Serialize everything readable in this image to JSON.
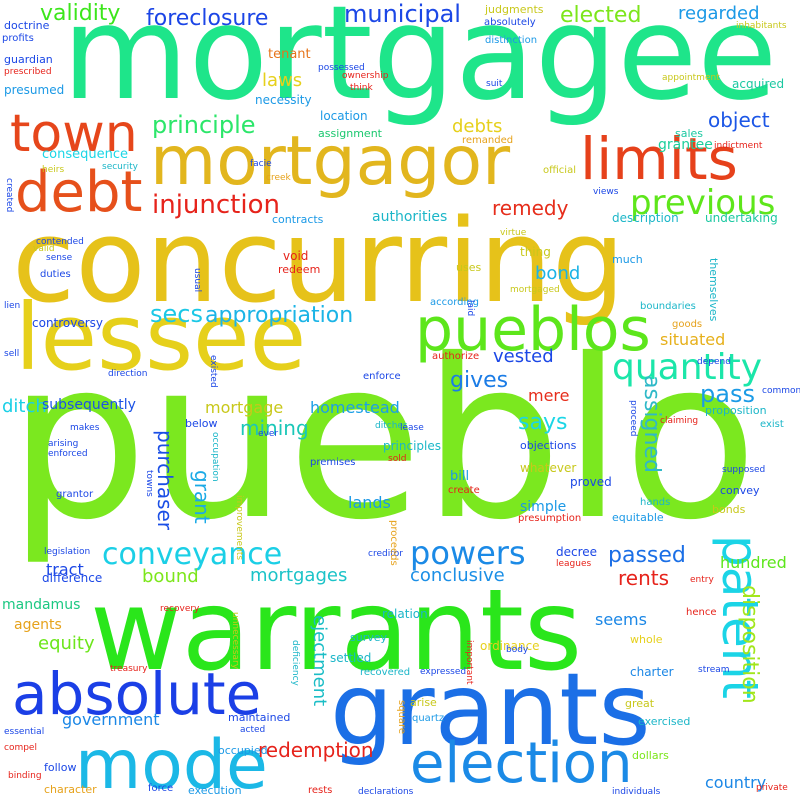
{
  "words": [
    {
      "text": "pueblo",
      "color": "#7be81f"
    },
    {
      "text": "mortgagee",
      "color": "#1ee58a"
    },
    {
      "text": "concurring",
      "color": "#e6c21a"
    },
    {
      "text": "warrants",
      "color": "#2ae61b"
    },
    {
      "text": "grants",
      "color": "#1b6fe6"
    },
    {
      "text": "lessee",
      "color": "#e6d01b"
    },
    {
      "text": "mortgagor",
      "color": "#e2b61e"
    },
    {
      "text": "pueblos",
      "color": "#5de61b"
    },
    {
      "text": "absolute",
      "color": "#1b3fe6"
    },
    {
      "text": "mode",
      "color": "#1bb8e6"
    },
    {
      "text": "election",
      "color": "#1b8ae6"
    },
    {
      "text": "limits",
      "color": "#e6411b"
    },
    {
      "text": "debt",
      "color": "#e6501b"
    },
    {
      "text": "town",
      "color": "#e6461b"
    },
    {
      "text": "patent",
      "color": "#1bd4e6"
    },
    {
      "text": "previous",
      "color": "#5ee61b"
    },
    {
      "text": "quantity",
      "color": "#1be6a9"
    },
    {
      "text": "powers",
      "color": "#1b8ae6"
    },
    {
      "text": "conveyance",
      "color": "#1bcfe6"
    },
    {
      "text": "injunction",
      "color": "#e6231b"
    },
    {
      "text": "municipal",
      "color": "#1b47e6"
    },
    {
      "text": "foreclosure",
      "color": "#1b45e6"
    },
    {
      "text": "validity",
      "color": "#3ce61b"
    },
    {
      "text": "elected",
      "color": "#7ce61b"
    },
    {
      "text": "regarded",
      "color": "#1b99e6"
    },
    {
      "text": "principle",
      "color": "#2ce66a"
    },
    {
      "text": "object",
      "color": "#1b56e6"
    },
    {
      "text": "secs",
      "color": "#1bc8e6"
    },
    {
      "text": "appropriation",
      "color": "#1bb4e6"
    },
    {
      "text": "pass",
      "color": "#1b9be6"
    },
    {
      "text": "says",
      "color": "#1bd6e6"
    },
    {
      "text": "gives",
      "color": "#1b7ce6"
    },
    {
      "text": "assigned",
      "color": "#2fb9c8"
    },
    {
      "text": "disposition",
      "color": "#a2e61b"
    },
    {
      "text": "remedy",
      "color": "#e62d1b"
    },
    {
      "text": "mining",
      "color": "#1bc7b8"
    },
    {
      "text": "redemption",
      "color": "#e6231b"
    },
    {
      "text": "purchaser",
      "color": "#1b4fe6"
    },
    {
      "text": "grant",
      "color": "#1baae6"
    },
    {
      "text": "passed",
      "color": "#1b6fe6"
    },
    {
      "text": "rents",
      "color": "#e6231b"
    },
    {
      "text": "mortgages",
      "color": "#1bc3c8"
    },
    {
      "text": "mortgage",
      "color": "#c8c81b"
    },
    {
      "text": "laws",
      "color": "#e6d01b"
    },
    {
      "text": "government",
      "color": "#1b87e6"
    },
    {
      "text": "ejectment",
      "color": "#1bbdc6"
    },
    {
      "text": "bound",
      "color": "#7ce61b"
    },
    {
      "text": "conclusive",
      "color": "#1b8fe6"
    },
    {
      "text": "equity",
      "color": "#6de61b"
    },
    {
      "text": "vested",
      "color": "#1b47e6"
    },
    {
      "text": "bond",
      "color": "#1bb3e6"
    },
    {
      "text": "debts",
      "color": "#e6d01b"
    },
    {
      "text": "situated",
      "color": "#e6b01b"
    },
    {
      "text": "ditch",
      "color": "#1bd0e6"
    },
    {
      "text": "homestead",
      "color": "#1b9fe6"
    },
    {
      "text": "subsequently",
      "color": "#1b52e6"
    },
    {
      "text": "mere",
      "color": "#e62d1b"
    },
    {
      "text": "hundred",
      "color": "#5de61b"
    },
    {
      "text": "seems",
      "color": "#1b87e6"
    },
    {
      "text": "country",
      "color": "#1b87e6"
    },
    {
      "text": "lands",
      "color": "#1b99e6"
    },
    {
      "text": "tract",
      "color": "#1b47e6"
    },
    {
      "text": "grantee",
      "color": "#1bcf9b"
    },
    {
      "text": "authorities",
      "color": "#1bb6c8"
    },
    {
      "text": "mandamus",
      "color": "#1bc882"
    },
    {
      "text": "agents",
      "color": "#e6a21b"
    },
    {
      "text": "principles",
      "color": "#1bb7c8"
    },
    {
      "text": "acquired",
      "color": "#1bc8a1"
    },
    {
      "text": "necessity",
      "color": "#1b99e6"
    },
    {
      "text": "consequence",
      "color": "#1bd6e6"
    },
    {
      "text": "presumed",
      "color": "#1b99e6"
    },
    {
      "text": "tenant",
      "color": "#e6741b"
    },
    {
      "text": "controversy",
      "color": "#1b47e6"
    },
    {
      "text": "sales",
      "color": "#1bc8a1"
    },
    {
      "text": "location",
      "color": "#1b99e6"
    },
    {
      "text": "assignment",
      "color": "#1bc86f"
    },
    {
      "text": "description",
      "color": "#1bb6c8"
    },
    {
      "text": "undertaking",
      "color": "#1bc8a1"
    },
    {
      "text": "contracts",
      "color": "#1b99e6"
    },
    {
      "text": "void",
      "color": "#e6231b"
    },
    {
      "text": "redeem",
      "color": "#e6231b"
    },
    {
      "text": "uses",
      "color": "#c8c81b"
    },
    {
      "text": "thing",
      "color": "#c8c81b"
    },
    {
      "text": "much",
      "color": "#1b99e6"
    },
    {
      "text": "according",
      "color": "#1b99e6"
    },
    {
      "text": "simple",
      "color": "#1b99e6"
    },
    {
      "text": "bill",
      "color": "#1b99e6"
    },
    {
      "text": "proved",
      "color": "#1b47e6"
    },
    {
      "text": "whatever",
      "color": "#c8c81b"
    },
    {
      "text": "convey",
      "color": "#1b47e6"
    },
    {
      "text": "equitable",
      "color": "#1b99e6"
    },
    {
      "text": "bonds",
      "color": "#c8c81b"
    },
    {
      "text": "decree",
      "color": "#1b47e6"
    },
    {
      "text": "relation",
      "color": "#1bb6c8"
    },
    {
      "text": "survey",
      "color": "#1bb6c8"
    },
    {
      "text": "settled",
      "color": "#1bb6c8"
    },
    {
      "text": "recovered",
      "color": "#1bb6c8"
    },
    {
      "text": "ordinance",
      "color": "#e6d01b"
    },
    {
      "text": "charter",
      "color": "#1b87e6"
    },
    {
      "text": "whole",
      "color": "#e6d01b"
    },
    {
      "text": "difference",
      "color": "#1b47e6"
    },
    {
      "text": "maintained",
      "color": "#1b47e6"
    },
    {
      "text": "occupied",
      "color": "#1b99e6"
    },
    {
      "text": "execution",
      "color": "#1b99e6"
    },
    {
      "text": "dollars",
      "color": "#7ce61b"
    },
    {
      "text": "character",
      "color": "#e6a21b"
    },
    {
      "text": "follow",
      "color": "#1b47e6"
    },
    {
      "text": "enforce",
      "color": "#1b47e6"
    },
    {
      "text": "proposition",
      "color": "#1bb6c8"
    },
    {
      "text": "exist",
      "color": "#1bb6c8"
    },
    {
      "text": "goods",
      "color": "#e6a21b"
    },
    {
      "text": "boundaries",
      "color": "#1bb6c8"
    },
    {
      "text": "themselves",
      "color": "#1bb6c8"
    },
    {
      "text": "objections",
      "color": "#1b47e6"
    },
    {
      "text": "premises",
      "color": "#1b47e6"
    },
    {
      "text": "create",
      "color": "#e6231b"
    },
    {
      "text": "presumption",
      "color": "#e6231b"
    },
    {
      "text": "hands",
      "color": "#1bb6c8"
    },
    {
      "text": "great",
      "color": "#c8c81b"
    },
    {
      "text": "exercised",
      "color": "#1bb6c8"
    },
    {
      "text": "hence",
      "color": "#e6231b"
    },
    {
      "text": "remanded",
      "color": "#e6a21b"
    },
    {
      "text": "ownership",
      "color": "#e6231b"
    },
    {
      "text": "judgments",
      "color": "#c8c81b"
    },
    {
      "text": "absolutely",
      "color": "#1b47e6"
    },
    {
      "text": "distinction",
      "color": "#1b99e6"
    },
    {
      "text": "doctrine",
      "color": "#1b47e6"
    },
    {
      "text": "profits",
      "color": "#1b47e6"
    },
    {
      "text": "guardian",
      "color": "#1b47e6"
    },
    {
      "text": "prescribed",
      "color": "#e6231b"
    },
    {
      "text": "possessed",
      "color": "#1b47e6"
    },
    {
      "text": "think",
      "color": "#e6231b"
    },
    {
      "text": "suit",
      "color": "#1b47e6"
    },
    {
      "text": "facie",
      "color": "#1b47e6"
    },
    {
      "text": "creek",
      "color": "#e6a21b"
    },
    {
      "text": "heirs",
      "color": "#c8c81b"
    },
    {
      "text": "security",
      "color": "#1bb6c8"
    },
    {
      "text": "official",
      "color": "#c8c81b"
    },
    {
      "text": "views",
      "color": "#1b47e6"
    },
    {
      "text": "virtue",
      "color": "#c8c81b"
    },
    {
      "text": "valid",
      "color": "#c8c81b"
    },
    {
      "text": "sense",
      "color": "#1b47e6"
    },
    {
      "text": "duties",
      "color": "#1b47e6"
    },
    {
      "text": "lien",
      "color": "#1b47e6"
    },
    {
      "text": "sell",
      "color": "#1b47e6"
    },
    {
      "text": "direction",
      "color": "#1b47e6"
    },
    {
      "text": "arising",
      "color": "#1b47e6"
    },
    {
      "text": "enforced",
      "color": "#1b47e6"
    },
    {
      "text": "grantor",
      "color": "#1b47e6"
    },
    {
      "text": "makes",
      "color": "#1b47e6"
    },
    {
      "text": "below",
      "color": "#1b47e6"
    },
    {
      "text": "occupation",
      "color": "#1bb6c8"
    },
    {
      "text": "ditches",
      "color": "#1bb6c8"
    },
    {
      "text": "lease",
      "color": "#1b47e6"
    },
    {
      "text": "sold",
      "color": "#e6231b"
    },
    {
      "text": "improvements",
      "color": "#c8c81b"
    },
    {
      "text": "legislation",
      "color": "#1b47e6"
    },
    {
      "text": "creditor",
      "color": "#1b47e6"
    },
    {
      "text": "leagues",
      "color": "#e6231b"
    },
    {
      "text": "entry",
      "color": "#e6231b"
    },
    {
      "text": "recovery",
      "color": "#e6231b"
    },
    {
      "text": "unnecessary",
      "color": "#c8c81b"
    },
    {
      "text": "deficiency",
      "color": "#1bb6c8"
    },
    {
      "text": "important",
      "color": "#e6231b"
    },
    {
      "text": "expressed",
      "color": "#1b47e6"
    },
    {
      "text": "body",
      "color": "#1b47e6"
    },
    {
      "text": "arise",
      "color": "#c8c81b"
    },
    {
      "text": "quartz",
      "color": "#1b99e6"
    },
    {
      "text": "square",
      "color": "#e6a21b"
    },
    {
      "text": "essential",
      "color": "#1b47e6"
    },
    {
      "text": "compel",
      "color": "#e6231b"
    },
    {
      "text": "binding",
      "color": "#e6231b"
    },
    {
      "text": "force",
      "color": "#1b47e6"
    },
    {
      "text": "rests",
      "color": "#e6231b"
    },
    {
      "text": "declarations",
      "color": "#1b47e6"
    },
    {
      "text": "individuals",
      "color": "#1b47e6"
    },
    {
      "text": "private",
      "color": "#e6231b"
    },
    {
      "text": "acted",
      "color": "#1b47e6"
    },
    {
      "text": "stream",
      "color": "#1b47e6"
    },
    {
      "text": "treasury",
      "color": "#e6231b"
    },
    {
      "text": "appointment",
      "color": "#c8c81b"
    },
    {
      "text": "indictment",
      "color": "#e6231b"
    },
    {
      "text": "inhabitants",
      "color": "#c8c81b"
    },
    {
      "text": "created",
      "color": "#1b47e6"
    },
    {
      "text": "contended",
      "color": "#1b47e6"
    },
    {
      "text": "laid",
      "color": "#1b47e6"
    },
    {
      "text": "authorize",
      "color": "#e6231b"
    },
    {
      "text": "mortgaged",
      "color": "#c8c81b"
    },
    {
      "text": "proceed",
      "color": "#1b47e6"
    },
    {
      "text": "depend",
      "color": "#1b47e6"
    },
    {
      "text": "common",
      "color": "#1b47e6"
    },
    {
      "text": "claiming",
      "color": "#e6231b"
    },
    {
      "text": "supposed",
      "color": "#1b47e6"
    },
    {
      "text": "existed",
      "color": "#1b47e6"
    },
    {
      "text": "usual",
      "color": "#1b47e6"
    },
    {
      "text": "ever",
      "color": "#1b47e6"
    },
    {
      "text": "towns",
      "color": "#1b47e6"
    },
    {
      "text": "proceeds",
      "color": "#e6a21b"
    }
  ]
}
